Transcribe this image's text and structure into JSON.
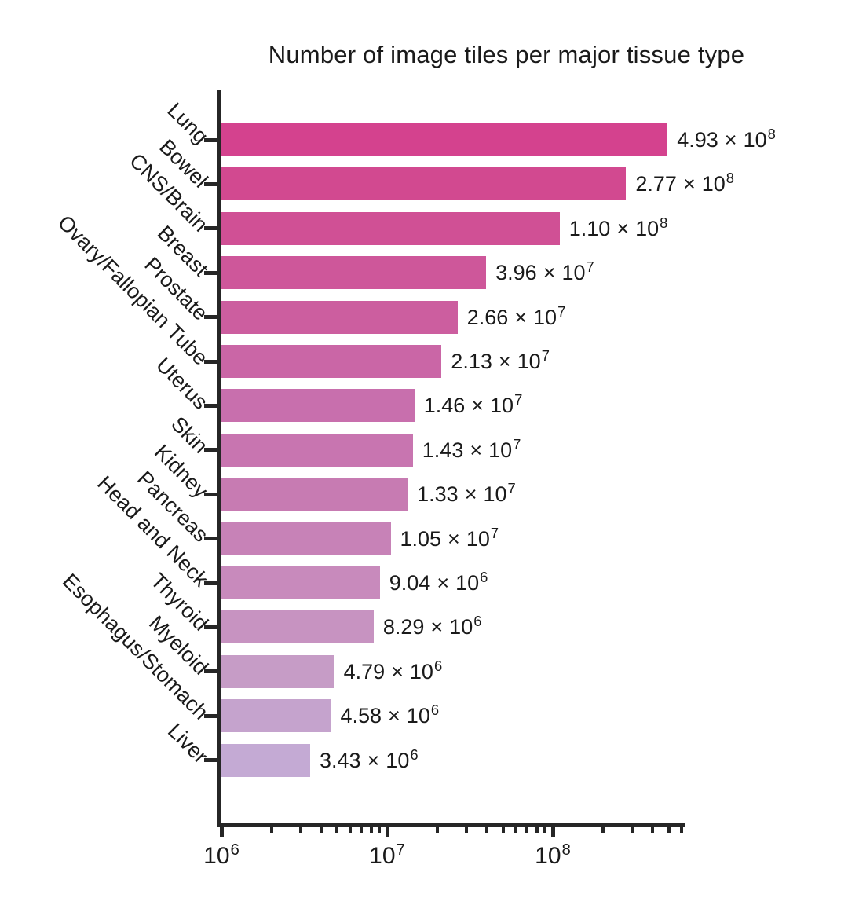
{
  "title": "Number of image tiles per major tissue type",
  "colors": {
    "background": "#ffffff",
    "axis": "#262626",
    "text": "#1a1a1a"
  },
  "chart_data": {
    "type": "bar",
    "orientation": "horizontal",
    "title": "Number of image tiles per major tissue type",
    "xscale": "log",
    "xlim": [
      1000000,
      632000000
    ],
    "grid": false,
    "legend": false,
    "categories": [
      "Lung",
      "Bowel",
      "CNS/Brain",
      "Breast",
      "Prostate",
      "Ovary/Fallopian Tube",
      "Uterus",
      "Skin",
      "Kidney",
      "Pancreas",
      "Head and Neck",
      "Thyroid",
      "Myeloid",
      "Esophagus/Stomach",
      "Liver"
    ],
    "values": [
      493000000,
      277000000,
      110000000,
      39600000,
      26600000,
      21300000,
      14600000,
      14300000,
      13300000,
      10500000,
      9040000,
      8290000,
      4790000,
      4580000,
      3430000
    ],
    "value_labels": [
      {
        "mantissa": "4.93",
        "exp": "8"
      },
      {
        "mantissa": "2.77",
        "exp": "8"
      },
      {
        "mantissa": "1.10",
        "exp": "8"
      },
      {
        "mantissa": "3.96",
        "exp": "7"
      },
      {
        "mantissa": "2.66",
        "exp": "7"
      },
      {
        "mantissa": "2.13",
        "exp": "7"
      },
      {
        "mantissa": "1.46",
        "exp": "7"
      },
      {
        "mantissa": "1.43",
        "exp": "7"
      },
      {
        "mantissa": "1.33",
        "exp": "7"
      },
      {
        "mantissa": "1.05",
        "exp": "7"
      },
      {
        "mantissa": "9.04",
        "exp": "6"
      },
      {
        "mantissa": "8.29",
        "exp": "6"
      },
      {
        "mantissa": "4.79",
        "exp": "6"
      },
      {
        "mantissa": "4.58",
        "exp": "6"
      },
      {
        "mantissa": "3.43",
        "exp": "6"
      }
    ],
    "bar_colors": [
      "#d4428e",
      "#d24990",
      "#d05095",
      "#ce579a",
      "#cc5e9f",
      "#ca66a6",
      "#c86fad",
      "#c875b0",
      "#c77bb2",
      "#c782b7",
      "#c88abc",
      "#c793c1",
      "#c69cc6",
      "#c5a3cd",
      "#c4aad4"
    ],
    "x_major_ticks": [
      1000000,
      10000000,
      100000000
    ],
    "x_tick_labels": [
      {
        "base": "10",
        "exp": "6"
      },
      {
        "base": "10",
        "exp": "7"
      },
      {
        "base": "10",
        "exp": "8"
      }
    ],
    "times_symbol": "×"
  }
}
